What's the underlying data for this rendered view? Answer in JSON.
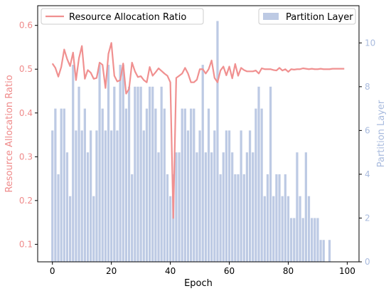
{
  "chart_data": {
    "type": "bar",
    "xlabel": "Epoch",
    "xlim": [
      -5,
      104
    ],
    "xticks": [
      0,
      20,
      40,
      60,
      80,
      100
    ],
    "x_tick_labels": [
      "0",
      "20",
      "40",
      "60",
      "80",
      "100"
    ],
    "y_left": {
      "label": "Resource Allocation Ratio",
      "lim": [
        0.06,
        0.645
      ],
      "ticks": [
        0.1,
        0.2,
        0.3,
        0.4,
        0.5,
        0.6
      ],
      "tick_labels": [
        "0.1",
        "0.2",
        "0.3",
        "0.4",
        "0.5",
        "0.6"
      ]
    },
    "y_right": {
      "label": "Partition Layer",
      "lim": [
        0,
        11.7
      ],
      "ticks": [
        0,
        2,
        4,
        6,
        8,
        10
      ],
      "tick_labels": [
        "0",
        "2",
        "4",
        "6",
        "8",
        "10"
      ]
    },
    "grid": false,
    "colors": {
      "line": "#f09090",
      "bar": "#aabbdd",
      "left_axis_text": "#ef8a8a",
      "right_axis_text": "#a9bbde"
    },
    "legends": [
      {
        "placement": "top-left",
        "label": "Resource Allocation Ratio",
        "kind": "line"
      },
      {
        "placement": "top-right",
        "label": "Partition Layer",
        "kind": "bar"
      }
    ],
    "series": [
      {
        "name": "Resource Allocation Ratio",
        "kind": "line",
        "axis": "left",
        "x": [
          0,
          1,
          2,
          3,
          4,
          5,
          6,
          7,
          8,
          9,
          10,
          11,
          12,
          13,
          14,
          15,
          16,
          17,
          18,
          19,
          20,
          21,
          22,
          23,
          24,
          25,
          26,
          27,
          28,
          29,
          30,
          31,
          32,
          33,
          34,
          35,
          36,
          37,
          38,
          39,
          40,
          41,
          42,
          43,
          44,
          45,
          46,
          47,
          48,
          49,
          50,
          51,
          52,
          53,
          54,
          55,
          56,
          57,
          58,
          59,
          60,
          61,
          62,
          63,
          64,
          65,
          66,
          67,
          68,
          69,
          70,
          71,
          72,
          73,
          74,
          75,
          76,
          77,
          78,
          79,
          80,
          81,
          82,
          83,
          84,
          85,
          86,
          87,
          88,
          89,
          90,
          91,
          92,
          93,
          94,
          95,
          96,
          97,
          98,
          99
        ],
        "y": [
          0.513,
          0.503,
          0.483,
          0.505,
          0.545,
          0.523,
          0.507,
          0.538,
          0.475,
          0.525,
          0.553,
          0.478,
          0.498,
          0.492,
          0.478,
          0.48,
          0.515,
          0.51,
          0.457,
          0.535,
          0.56,
          0.485,
          0.472,
          0.475,
          0.513,
          0.444,
          0.455,
          0.515,
          0.495,
          0.482,
          0.484,
          0.475,
          0.47,
          0.505,
          0.485,
          0.493,
          0.502,
          0.496,
          0.49,
          0.485,
          0.47,
          0.16,
          0.48,
          0.485,
          0.49,
          0.503,
          0.49,
          0.47,
          0.47,
          0.476,
          0.5,
          0.5,
          0.49,
          0.5,
          0.52,
          0.48,
          0.47,
          0.497,
          0.506,
          0.486,
          0.506,
          0.479,
          0.512,
          0.485,
          0.503,
          0.498,
          0.495,
          0.495,
          0.495,
          0.497,
          0.49,
          0.502,
          0.5,
          0.5,
          0.5,
          0.498,
          0.497,
          0.503,
          0.497,
          0.5,
          0.494,
          0.5,
          0.499,
          0.5,
          0.5,
          0.502,
          0.501,
          0.5,
          0.501,
          0.5,
          0.5,
          0.501,
          0.5,
          0.5,
          0.5,
          0.501,
          0.501,
          0.501,
          0.501,
          0.501
        ]
      },
      {
        "name": "Partition Layer",
        "kind": "bar",
        "axis": "right",
        "x": [
          0,
          1,
          2,
          3,
          4,
          5,
          6,
          7,
          8,
          9,
          10,
          11,
          12,
          13,
          14,
          15,
          16,
          17,
          18,
          19,
          20,
          21,
          22,
          23,
          24,
          25,
          26,
          27,
          28,
          29,
          30,
          31,
          32,
          33,
          34,
          35,
          36,
          37,
          38,
          39,
          40,
          41,
          42,
          43,
          44,
          45,
          46,
          47,
          48,
          49,
          50,
          51,
          52,
          53,
          54,
          55,
          56,
          57,
          58,
          59,
          60,
          61,
          62,
          63,
          64,
          65,
          66,
          67,
          68,
          69,
          70,
          71,
          72,
          73,
          74,
          75,
          76,
          77,
          78,
          79,
          80,
          81,
          82,
          83,
          84,
          85,
          86,
          87,
          88,
          89,
          90,
          91,
          92,
          93,
          94,
          95
        ],
        "y": [
          6,
          7,
          4,
          7,
          7,
          5,
          3,
          9,
          6,
          8,
          6,
          7,
          5,
          6,
          3,
          6,
          9,
          7,
          6,
          9,
          6,
          8,
          6,
          9,
          9,
          7,
          8,
          4,
          8,
          8,
          8,
          6,
          7,
          8,
          8,
          7,
          5,
          8,
          7,
          4,
          3,
          4,
          5,
          5,
          7,
          7,
          6,
          7,
          7,
          5,
          6,
          9,
          5,
          7,
          5,
          6,
          11,
          4,
          5,
          6,
          6,
          5,
          4,
          4,
          6,
          4,
          5,
          6,
          5,
          7,
          8,
          7,
          3,
          4,
          8,
          3,
          4,
          4,
          3,
          4,
          3,
          2,
          2,
          5,
          3,
          2,
          5,
          3,
          2,
          2,
          2,
          1,
          1,
          0,
          1,
          0
        ]
      }
    ]
  }
}
